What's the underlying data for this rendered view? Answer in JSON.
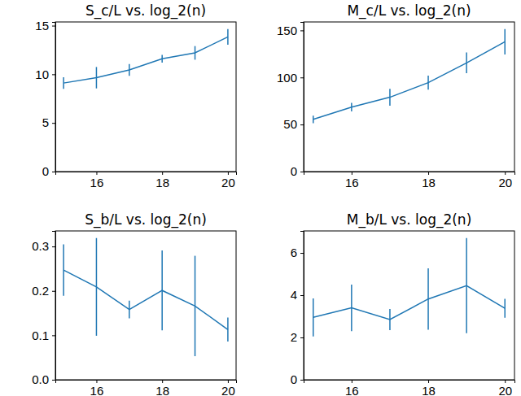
{
  "chart_data": [
    {
      "type": "line",
      "title": "S_c/L vs. log_2(n)",
      "color": "#1f77b4",
      "x": [
        15,
        16,
        17,
        18,
        19,
        20
      ],
      "values": [
        9.1,
        9.65,
        10.45,
        11.6,
        12.2,
        13.85
      ],
      "errors": [
        0.6,
        1.1,
        0.6,
        0.4,
        0.7,
        0.8
      ],
      "xlim": [
        14.75,
        20.25
      ],
      "xticks": [
        16,
        18,
        20
      ],
      "ylim": [
        0,
        15.38
      ],
      "yticks": [
        0,
        5,
        10,
        15
      ]
    },
    {
      "type": "line",
      "title": "M_c/L vs. log_2(n)",
      "color": "#1f77b4",
      "x": [
        15,
        16,
        17,
        18,
        19,
        20
      ],
      "values": [
        55.5,
        68.5,
        79,
        94.5,
        115.5,
        138
      ],
      "errors": [
        4,
        4.5,
        9,
        7.5,
        11,
        13.5
      ],
      "xlim": [
        14.75,
        20.25
      ],
      "xticks": [
        16,
        18,
        20
      ],
      "ylim": [
        0,
        159
      ],
      "yticks": [
        0,
        50,
        100,
        150
      ]
    },
    {
      "type": "line",
      "title": "S_b/L vs. log_2(n)",
      "color": "#1f77b4",
      "x": [
        15,
        16,
        17,
        18,
        19,
        20
      ],
      "values": [
        0.247,
        0.209,
        0.158,
        0.201,
        0.166,
        0.113
      ],
      "errors": [
        0.058,
        0.11,
        0.02,
        0.09,
        0.113,
        0.027
      ],
      "xlim": [
        14.75,
        20.25
      ],
      "xticks": [
        16,
        18,
        20
      ],
      "ylim": [
        0,
        0.335
      ],
      "yticks": [
        {
          "value": 0,
          "label": "0.0"
        },
        0.1,
        0.2,
        0.3
      ]
    },
    {
      "type": "line",
      "title": "M_b/L vs. log_2(n)",
      "color": "#1f77b4",
      "x": [
        15,
        16,
        17,
        18,
        19,
        20
      ],
      "values": [
        2.95,
        3.4,
        2.85,
        3.82,
        4.45,
        3.38
      ],
      "errors": [
        0.9,
        1.1,
        0.5,
        1.45,
        2.25,
        0.45
      ],
      "xlim": [
        14.75,
        20.25
      ],
      "xticks": [
        16,
        18,
        20
      ],
      "ylim": [
        0,
        7.04
      ],
      "yticks": [
        0,
        2,
        4,
        6
      ]
    }
  ]
}
